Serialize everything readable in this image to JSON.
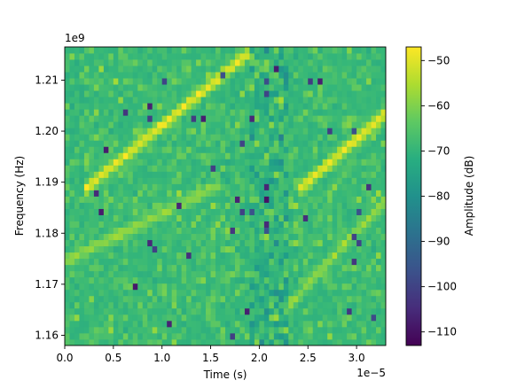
{
  "chart_data": {
    "type": "heatmap",
    "title": "",
    "xlabel": "Time (s)",
    "ylabel": "Frequency (Hz)",
    "x_offset_label": "1e−5",
    "y_offset_label": "1e9",
    "xlim": [
      0.0,
      3.3e-05
    ],
    "ylim": [
      1158000000.0,
      1216500000.0
    ],
    "x_ticks": [
      0.0,
      5e-06,
      1e-05,
      1.5e-05,
      2e-05,
      2.5e-05,
      3e-05
    ],
    "x_tick_labels": [
      "0.0",
      "0.5",
      "1.0",
      "1.5",
      "2.0",
      "2.5",
      "3.0"
    ],
    "y_ticks": [
      1160000000.0,
      1170000000.0,
      1180000000.0,
      1190000000.0,
      1200000000.0,
      1210000000.0
    ],
    "y_tick_labels": [
      "1.16",
      "1.17",
      "1.18",
      "1.19",
      "1.20",
      "1.21"
    ],
    "colorbar": {
      "label": "Amplitude (dB)",
      "vmin": -113,
      "vmax": -47,
      "ticks": [
        -50,
        -60,
        -70,
        -80,
        -90,
        -100,
        -110
      ],
      "tick_labels": [
        "−50",
        "−60",
        "−70",
        "−80",
        "−90",
        "−100",
        "−110"
      ],
      "colormap": "viridis"
    },
    "grid_cells": {
      "time_bins": 66,
      "freq_bins": 48
    },
    "noise_floor_db": -70,
    "signal_tracks": [
      {
        "t_start": 2e-06,
        "t_end": 1.9e-05,
        "f_start": 1188500000.0,
        "f_end": 1215500000.0,
        "peak_db": -49
      },
      {
        "t_start": 2.4e-05,
        "t_end": 3.3e-05,
        "f_start": 1188500000.0,
        "f_end": 1203500000.0,
        "peak_db": -49
      },
      {
        "t_start": 0.0,
        "t_end": 1.6e-05,
        "f_start": 1174500000.0,
        "f_end": 1189500000.0,
        "peak_db": -58
      },
      {
        "t_start": 2.3e-05,
        "t_end": 3.3e-05,
        "f_start": 1166000000.0,
        "f_end": 1186500000.0,
        "peak_db": -58
      }
    ]
  }
}
